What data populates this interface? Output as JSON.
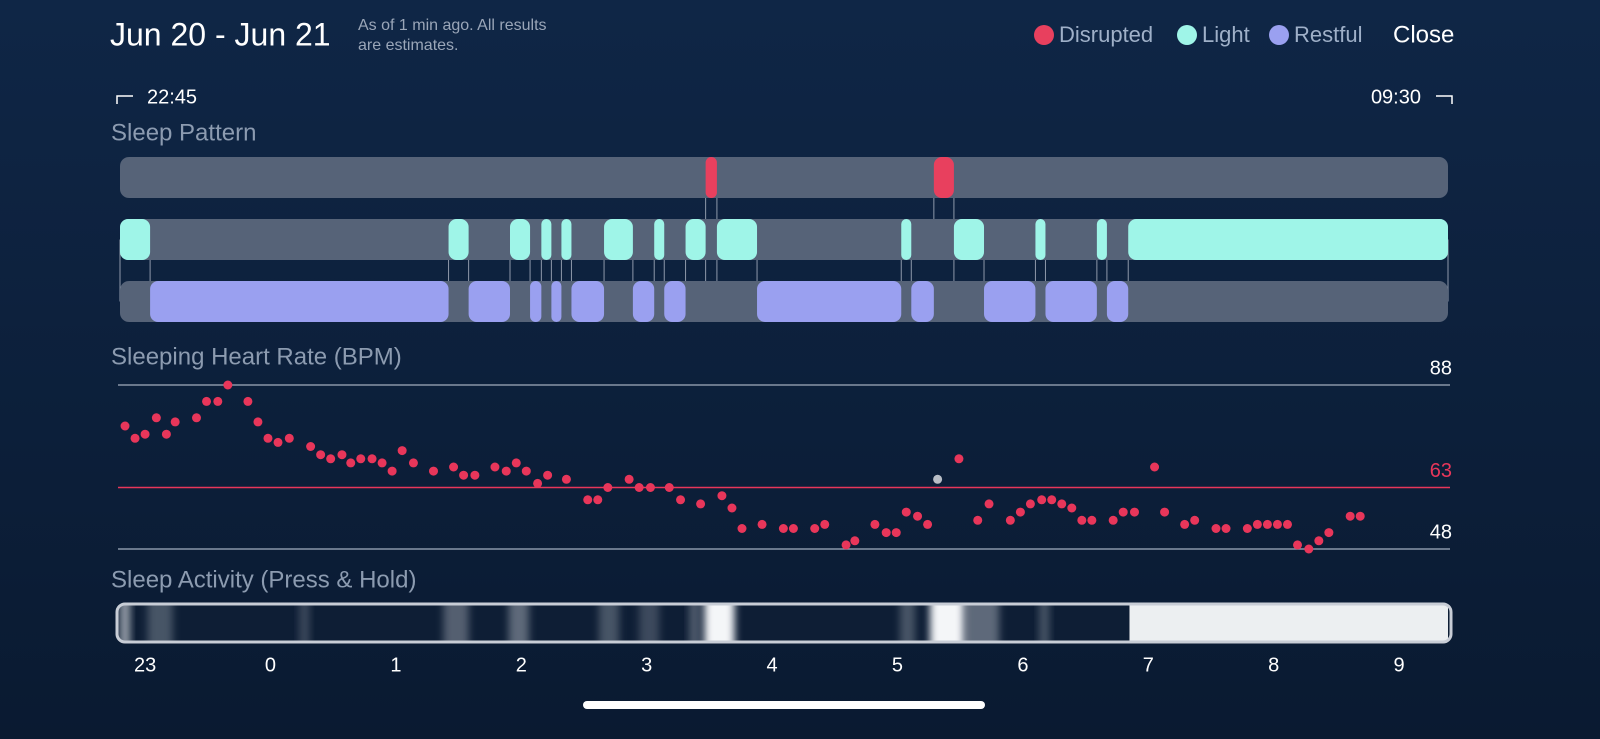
{
  "header": {
    "title": "Jun 20 - Jun 21",
    "subtitle": [
      "As of 1 min ago. All results",
      "are estimates."
    ],
    "close": "Close"
  },
  "time_range": {
    "start": "22:45",
    "end": "09:30"
  },
  "time_axis": {
    "xlim": [
      -1.2,
      9.39
    ],
    "xticks": [
      {
        "value": -1,
        "label": "23"
      },
      0,
      1,
      2,
      3,
      4,
      5,
      6,
      7,
      8,
      9
    ]
  },
  "sleep_pattern": {
    "title": "Sleep Pattern",
    "rows": [
      {
        "name": "Disrupted",
        "color": "#e8405e",
        "segments": [
          [
            3.47,
            3.56
          ],
          [
            5.29,
            5.45
          ]
        ]
      },
      {
        "name": "Light",
        "color": "#9ff5e8",
        "segments": [
          [
            -1.2,
            -0.96
          ],
          [
            1.42,
            1.58
          ],
          [
            1.91,
            2.07
          ],
          [
            2.16,
            2.24
          ],
          [
            2.32,
            2.4
          ],
          [
            2.66,
            2.89
          ],
          [
            3.06,
            3.14
          ],
          [
            3.31,
            3.47
          ],
          [
            3.56,
            3.88
          ],
          [
            5.03,
            5.11
          ],
          [
            5.45,
            5.69
          ],
          [
            6.1,
            6.18
          ],
          [
            6.59,
            6.67
          ],
          [
            6.84,
            9.39
          ]
        ]
      },
      {
        "name": "Restful",
        "color": "#9aa0f0",
        "segments": [
          [
            -0.96,
            1.42
          ],
          [
            1.58,
            1.91
          ],
          [
            2.07,
            2.16
          ],
          [
            2.24,
            2.32
          ],
          [
            2.4,
            2.66
          ],
          [
            2.89,
            3.06
          ],
          [
            3.14,
            3.31
          ],
          [
            3.88,
            5.03
          ],
          [
            5.11,
            5.29
          ],
          [
            5.69,
            6.1
          ],
          [
            6.18,
            6.59
          ],
          [
            6.67,
            6.84
          ]
        ]
      }
    ]
  },
  "heart_rate": {
    "type": "scatter",
    "title": "Sleeping Heart Rate (BPM)",
    "color": "#e8365a",
    "ylim": [
      48,
      88
    ],
    "yticks": [
      48,
      88
    ],
    "reference": {
      "value": 63,
      "color": "#e8365a"
    },
    "highlight": {
      "x": 5.32,
      "y": 65,
      "color": "#b9bec6"
    },
    "x": [
      -1.16,
      -1.08,
      -1.0,
      -0.91,
      -0.83,
      -0.76,
      -0.59,
      -0.51,
      -0.42,
      -0.34,
      -0.18,
      -0.1,
      -0.02,
      0.06,
      0.15,
      0.32,
      0.4,
      0.48,
      0.57,
      0.64,
      0.72,
      0.81,
      0.89,
      0.97,
      1.05,
      1.14,
      1.3,
      1.46,
      1.54,
      1.63,
      1.79,
      1.88,
      1.96,
      2.04,
      2.13,
      2.21,
      2.36,
      2.53,
      2.61,
      2.69,
      2.86,
      2.94,
      3.03,
      3.18,
      3.27,
      3.43,
      3.6,
      3.68,
      3.76,
      3.92,
      4.09,
      4.17,
      4.34,
      4.42,
      4.59,
      4.66,
      4.82,
      4.91,
      4.99,
      5.07,
      5.16,
      5.24,
      5.49,
      5.64,
      5.73,
      5.9,
      5.98,
      6.06,
      6.15,
      6.23,
      6.31,
      6.39,
      6.47,
      6.55,
      6.72,
      6.8,
      6.89,
      7.05,
      7.13,
      7.29,
      7.37,
      7.54,
      7.62,
      7.79,
      7.87,
      7.95,
      8.03,
      8.11,
      8.19,
      8.28,
      8.36,
      8.44,
      8.61,
      8.69
    ],
    "values": [
      78,
      75,
      76,
      80,
      76,
      79,
      80,
      84,
      84,
      88,
      84,
      79,
      75,
      74,
      75,
      73,
      71,
      70,
      71,
      69,
      70,
      70,
      69,
      67,
      72,
      69,
      67,
      68,
      66,
      66,
      68,
      67,
      69,
      67,
      64,
      66,
      65,
      60,
      60,
      63,
      65,
      63,
      63,
      63,
      60,
      59,
      61,
      58,
      53,
      54,
      53,
      53,
      53,
      54,
      49,
      50,
      54,
      52,
      52,
      57,
      56,
      54,
      70,
      55,
      59,
      55,
      57,
      59,
      60,
      60,
      59,
      58,
      55,
      55,
      55,
      57,
      57,
      68,
      57,
      54,
      55,
      53,
      53,
      53,
      54,
      54,
      54,
      54,
      49,
      48,
      50,
      52,
      56,
      56
    ]
  },
  "sleep_activity": {
    "title": "Sleep Activity (Press & Hold)",
    "color": "#f4f6f8",
    "bands": [
      [
        -1.2,
        -1.12,
        0.6
      ],
      [
        -0.98,
        -0.78,
        0.25
      ],
      [
        0.23,
        0.31,
        0.2
      ],
      [
        1.38,
        1.58,
        0.3
      ],
      [
        1.9,
        2.06,
        0.35
      ],
      [
        2.62,
        2.78,
        0.25
      ],
      [
        2.94,
        3.1,
        0.2
      ],
      [
        3.34,
        3.42,
        0.3
      ],
      [
        3.46,
        3.7,
        1
      ],
      [
        5.02,
        5.14,
        0.25
      ],
      [
        5.26,
        5.53,
        1
      ],
      [
        5.53,
        5.81,
        0.35
      ],
      [
        6.13,
        6.21,
        0.25
      ],
      [
        6.85,
        9.39,
        0.97
      ]
    ]
  }
}
